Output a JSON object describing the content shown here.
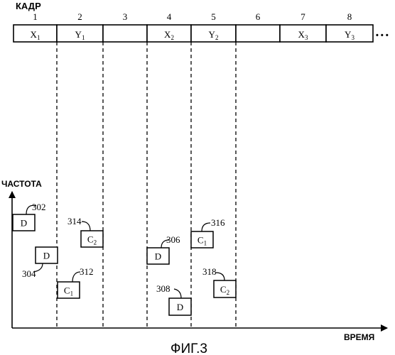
{
  "frame_label": "КАДР",
  "frames": [
    {
      "number": "1",
      "cell": "X",
      "sub": "1"
    },
    {
      "number": "2",
      "cell": "Y",
      "sub": "1"
    },
    {
      "number": "3",
      "cell": "",
      "sub": ""
    },
    {
      "number": "4",
      "cell": "X",
      "sub": "2"
    },
    {
      "number": "5",
      "cell": "Y",
      "sub": "2"
    },
    {
      "number": "6",
      "cell": "",
      "sub": ""
    },
    {
      "number": "7",
      "cell": "X",
      "sub": "3"
    },
    {
      "number": "8",
      "cell": "Y",
      "sub": "3"
    }
  ],
  "ellipsis": "• • •",
  "axis": {
    "y_label": "ЧАСТОТА",
    "x_label": "ВРЕМЯ"
  },
  "blocks": [
    {
      "id": "302",
      "text": "D",
      "sub": ""
    },
    {
      "id": "304",
      "text": "D",
      "sub": ""
    },
    {
      "id": "312",
      "text": "C",
      "sub": "1"
    },
    {
      "id": "314",
      "text": "C",
      "sub": "2"
    },
    {
      "id": "306",
      "text": "D",
      "sub": ""
    },
    {
      "id": "308",
      "text": "D",
      "sub": ""
    },
    {
      "id": "316",
      "text": "C",
      "sub": "1"
    },
    {
      "id": "318",
      "text": "C",
      "sub": "2"
    }
  ],
  "caption": "ФИГ.3"
}
